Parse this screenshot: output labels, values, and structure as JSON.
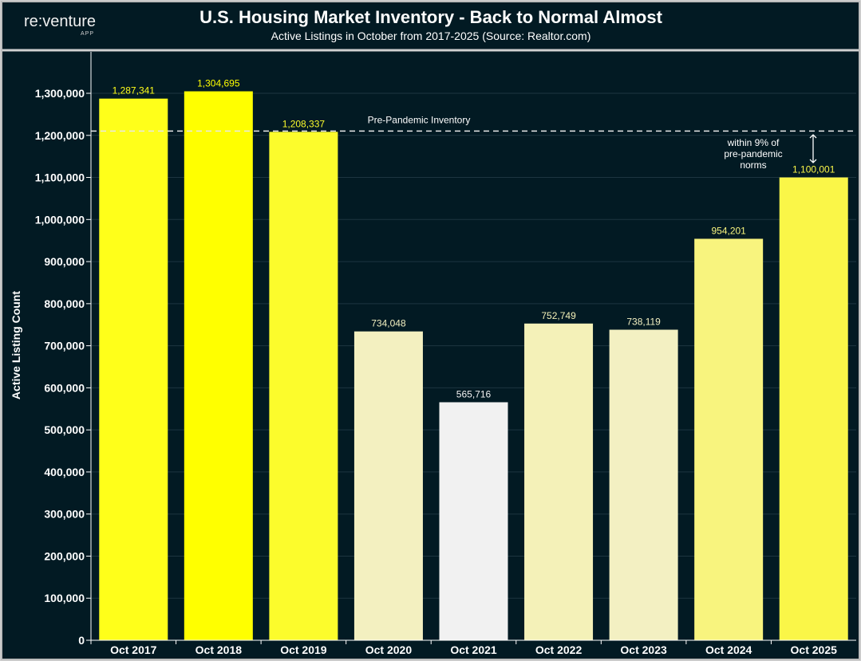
{
  "logo": {
    "name": "re:venture",
    "sub": "APP"
  },
  "chart_data": {
    "type": "bar",
    "title": "U.S. Housing Market Inventory - Back to Normal Almost",
    "subtitle": "Active Listings in October from 2017-2025 (Source: Realtor.com)",
    "xlabel": "",
    "ylabel": "Active Listing Count",
    "ylim": [
      0,
      1350000
    ],
    "yticks": [
      0,
      100000,
      200000,
      300000,
      400000,
      500000,
      600000,
      700000,
      800000,
      900000,
      1000000,
      1100000,
      1200000,
      1300000
    ],
    "ytick_labels": [
      "0",
      "100,000",
      "200,000",
      "300,000",
      "400,000",
      "500,000",
      "600,000",
      "700,000",
      "800,000",
      "900,000",
      "1,000,000",
      "1,100,000",
      "1,200,000",
      "1,300,000"
    ],
    "categories": [
      "Oct 2017",
      "Oct 2018",
      "Oct 2019",
      "Oct 2020",
      "Oct 2021",
      "Oct 2022",
      "Oct 2023",
      "Oct 2024",
      "Oct 2025"
    ],
    "values": [
      1287341,
      1304695,
      1208337,
      734048,
      565716,
      752749,
      738119,
      954201,
      1100001
    ],
    "value_labels": [
      "1,287,341",
      "1,304,695",
      "1,208,337",
      "734,048",
      "565,716",
      "752,749",
      "738,119",
      "954,201",
      "1,100,001"
    ],
    "colors": [
      "#ffff1a",
      "#ffff00",
      "#fcfc2c",
      "#f3f0c0",
      "#f1f1f1",
      "#f4f1b8",
      "#f3f0c2",
      "#f8f47e",
      "#faf648"
    ],
    "grid": true,
    "reference_line": {
      "value": 1208337,
      "label": "Pre-Pandemic Inventory"
    },
    "annotation": "within 9% of pre-pandemic norms",
    "annotation_lines": [
      "within 9% of",
      "pre-pandemic",
      "norms"
    ]
  }
}
